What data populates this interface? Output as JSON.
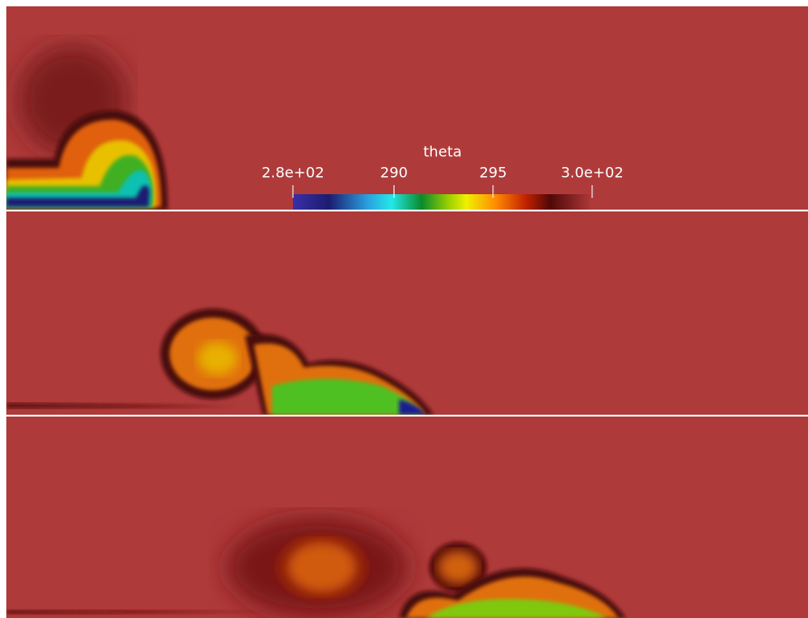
{
  "colorbar": {
    "title": "theta",
    "range": [
      284.9,
      300
    ],
    "ticks": [
      {
        "value": 284.9,
        "label": "2.8e+02"
      },
      290,
      295,
      {
        "value": 300,
        "label": "3.0e+02"
      }
    ]
  }
}
